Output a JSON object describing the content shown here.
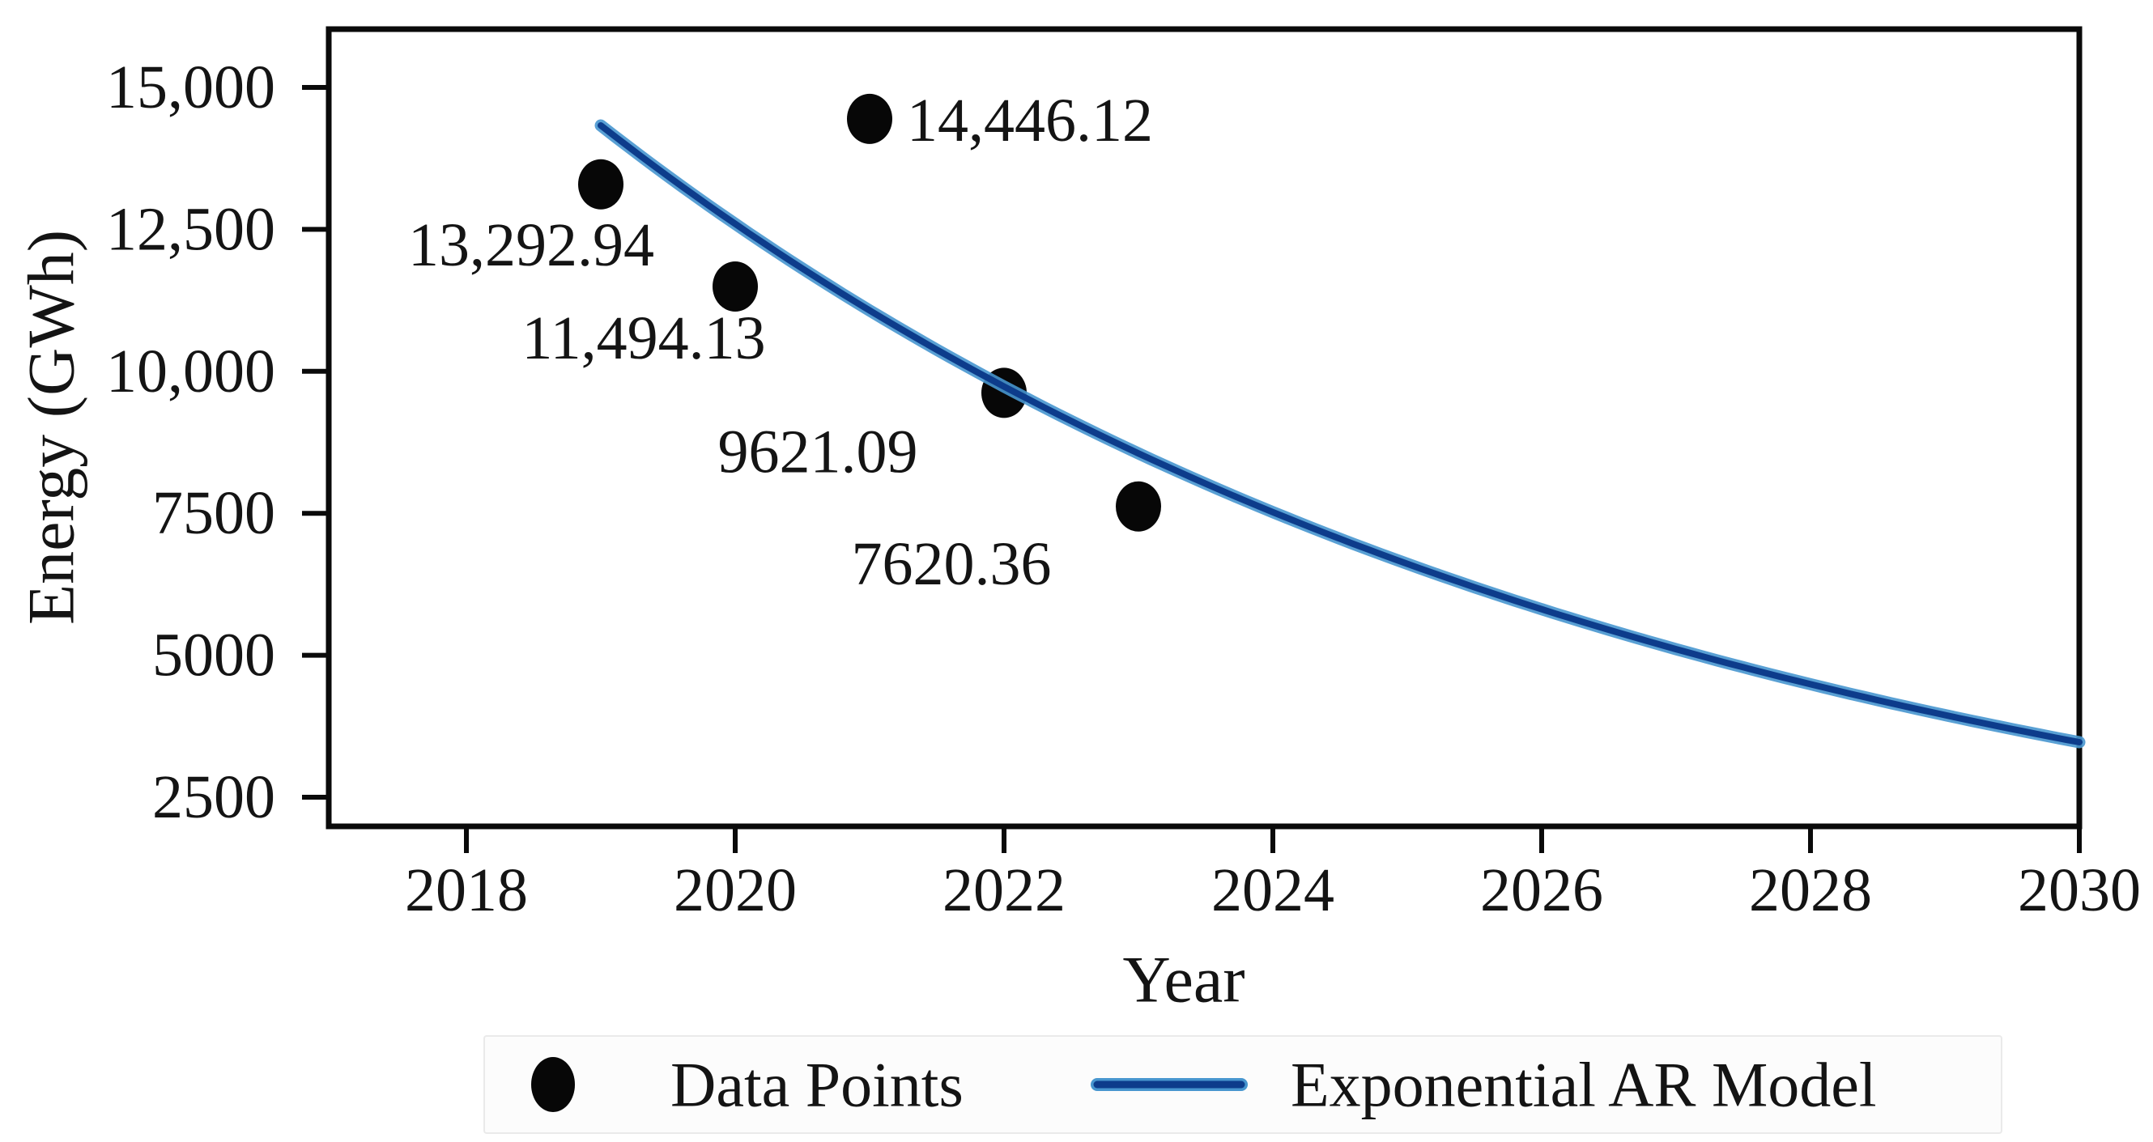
{
  "chart_data": {
    "type": "scatter+line",
    "title": "",
    "xlabel": "Year",
    "ylabel": "Energy (GWh)",
    "grid": false,
    "x_ticks": [
      "2018",
      "2020",
      "2022",
      "2024",
      "2026",
      "2028",
      "2030"
    ],
    "y_ticks": [
      {
        "value": 15000,
        "label": "15,000"
      },
      {
        "value": 12500,
        "label": "12,500"
      },
      {
        "value": 10000,
        "label": "10,000"
      },
      {
        "value": 7500,
        "label": "7500"
      },
      {
        "value": 5000,
        "label": "5000"
      },
      {
        "value": 2500,
        "label": "2500"
      }
    ],
    "xlim": [
      2016.98,
      2030
    ],
    "ylim": [
      1990,
      16070
    ],
    "series": [
      {
        "name": "Data Points",
        "type": "scatter",
        "color": "#070707",
        "points": [
          {
            "x": 2019,
            "y": 13292.94,
            "label": "13,292.94",
            "label_dx": -86,
            "label_dy": 75,
            "label_anchor": "middle"
          },
          {
            "x": 2020,
            "y": 11494.13,
            "label": "11,494.13",
            "label_dx": -113,
            "label_dy": 64,
            "label_anchor": "middle"
          },
          {
            "x": 2021,
            "y": 14446.12,
            "label": "14,446.12",
            "label_dx": 46,
            "label_dy": 2,
            "label_anchor": "start"
          },
          {
            "x": 2022,
            "y": 9621.09,
            "label": "9621.09",
            "label_dx": -230,
            "label_dy": 73,
            "label_anchor": "middle"
          },
          {
            "x": 2023,
            "y": 7620.36,
            "label": "7620.36",
            "label_dx": -231,
            "label_dy": 71,
            "label_anchor": "middle"
          }
        ]
      },
      {
        "name": "Exponential AR Model",
        "type": "line",
        "model": "exponential",
        "color_core": "#0d3c8b",
        "color_halo": "#4796cf",
        "x_start": 2019,
        "y_start": 14330,
        "x_end": 2030,
        "y_end": 3469
      }
    ],
    "legend": {
      "position": "bottom",
      "entries": [
        {
          "label": "Data Points",
          "marker": "dot",
          "color": "#070707"
        },
        {
          "label": "Exponential AR Model",
          "marker": "line",
          "color": "#0d3c8b"
        }
      ]
    }
  }
}
